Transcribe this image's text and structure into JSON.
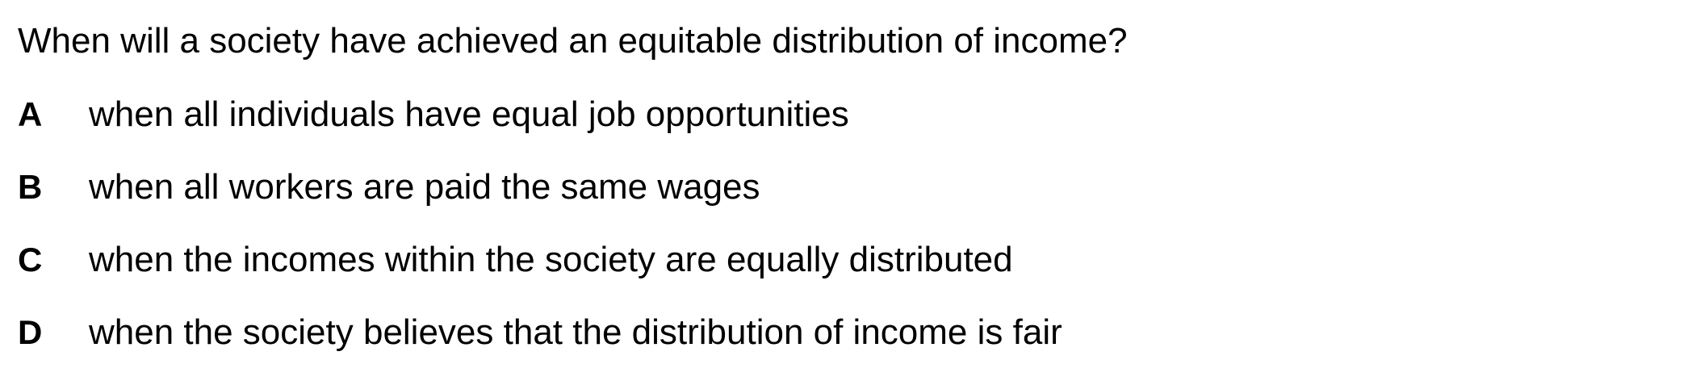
{
  "question": {
    "text": "When will a society have achieved an equitable distribution of income?"
  },
  "options": [
    {
      "letter": "A",
      "text": "when all individuals have equal job opportunities"
    },
    {
      "letter": "B",
      "text": "when all workers are paid the same wages"
    },
    {
      "letter": "C",
      "text": "when the incomes within the society are equally distributed"
    },
    {
      "letter": "D",
      "text": "when the society believes that the distribution of income is fair"
    }
  ]
}
